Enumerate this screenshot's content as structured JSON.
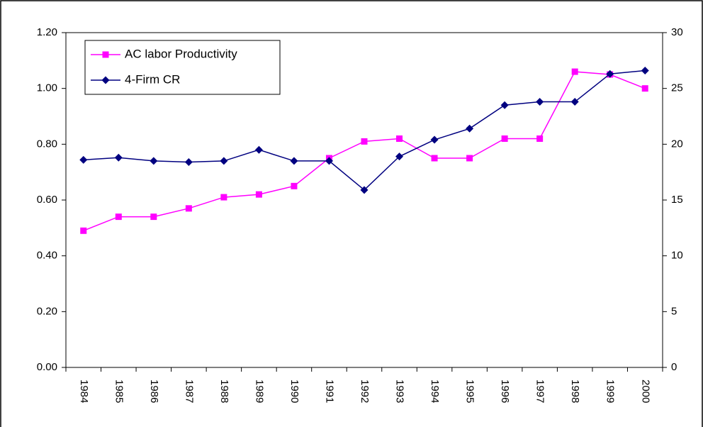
{
  "chart_data": {
    "type": "line",
    "categories": [
      "1984",
      "1985",
      "1986",
      "1987",
      "1988",
      "1989",
      "1990",
      "1991",
      "1992",
      "1993",
      "1994",
      "1995",
      "1996",
      "1997",
      "1998",
      "1999",
      "2000"
    ],
    "series": [
      {
        "name": "AC labor Productivity",
        "color": "#ff00ff",
        "marker": "square",
        "axis": "y",
        "values": [
          0.49,
          0.54,
          0.54,
          0.57,
          0.61,
          0.62,
          0.65,
          0.75,
          0.81,
          0.82,
          0.75,
          0.75,
          0.82,
          0.82,
          1.06,
          1.05,
          1.0
        ]
      },
      {
        "name": "4-Firm CR",
        "color": "#000080",
        "marker": "diamond",
        "axis": "y2",
        "values": [
          18.6,
          18.8,
          18.5,
          18.4,
          18.5,
          19.5,
          18.5,
          18.5,
          15.9,
          18.9,
          20.4,
          21.4,
          23.5,
          23.8,
          23.8,
          26.3,
          26.6
        ]
      }
    ],
    "ylim": [
      0,
      1.2
    ],
    "yticks": [
      {
        "value": 0,
        "label": "0.00"
      },
      {
        "value": 0.2,
        "label": "0.20"
      },
      {
        "value": 0.4,
        "label": "0.40"
      },
      {
        "value": 0.6,
        "label": "0.60"
      },
      {
        "value": 0.8,
        "label": "0.80"
      },
      {
        "value": 1,
        "label": "1.00"
      },
      {
        "value": 1.2,
        "label": "1.20"
      }
    ],
    "y2lim": [
      0,
      30
    ],
    "y2ticks": [
      0,
      5,
      10,
      15,
      20,
      25,
      30
    ],
    "grid": false,
    "legend": "top-left"
  }
}
